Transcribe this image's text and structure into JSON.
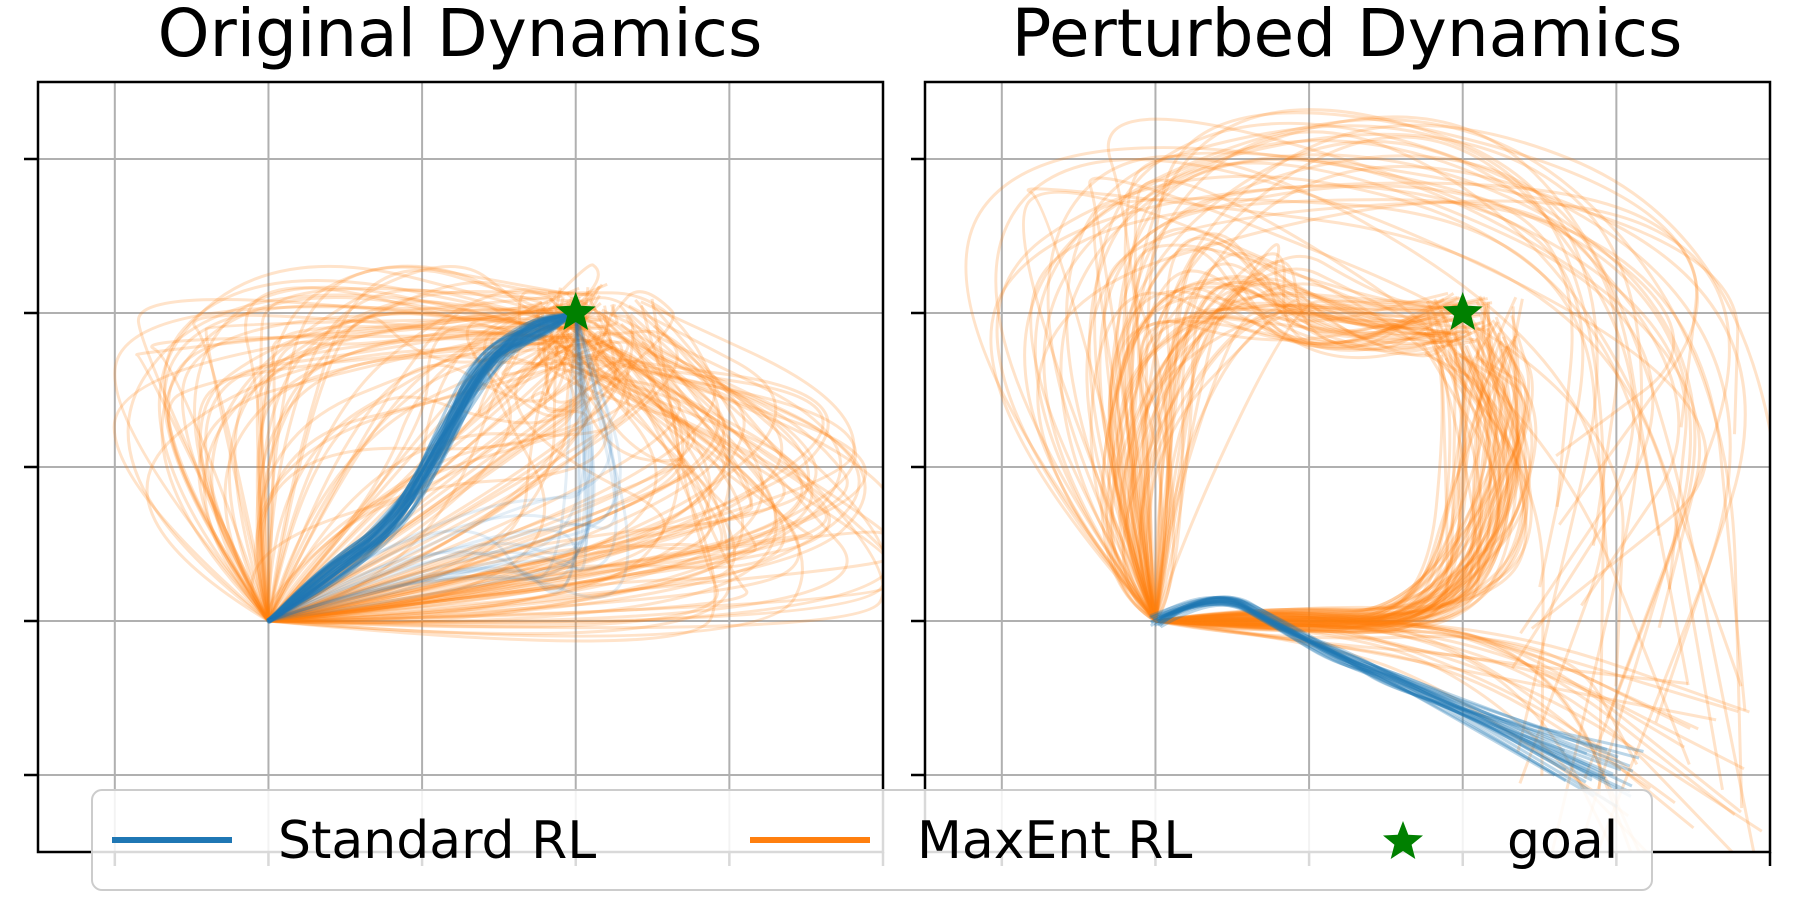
{
  "chart_data": [
    {
      "type": "line",
      "title": "Original Dynamics",
      "xlabel": "",
      "ylabel": "",
      "xlim": [
        -3.5,
        2.0
      ],
      "ylim": [
        -3.5,
        1.5
      ],
      "grid": true,
      "start": [
        -2.0,
        -2.0
      ],
      "goal": [
        0.0,
        0.0
      ],
      "series": [
        {
          "name": "Standard RL",
          "color": "#1f77b4",
          "waypoints": [
            [
              -2.0,
              -2.0
            ],
            [
              -1.6,
              -1.7
            ],
            [
              -1.2,
              -1.4
            ],
            [
              -0.9,
              -0.9
            ],
            [
              -0.6,
              -0.3
            ],
            [
              -0.25,
              -0.1
            ],
            [
              0.0,
              0.0
            ]
          ]
        },
        {
          "name": "MaxEnt RL",
          "color": "#ff7f0e",
          "description_points": []
        }
      ]
    },
    {
      "type": "line",
      "title": "Perturbed Dynamics",
      "xlabel": "",
      "ylabel": "",
      "xlim": [
        -3.5,
        2.0
      ],
      "ylim": [
        -3.5,
        1.5
      ],
      "grid": true,
      "start": [
        -2.0,
        -2.0
      ],
      "goal": [
        0.0,
        0.0
      ],
      "obstacle": {
        "x": [
          -1.6,
          -0.1
        ],
        "y": [
          -1.95,
          -0.2
        ]
      },
      "series": [
        {
          "name": "Standard RL",
          "color": "#1f77b4",
          "waypoints": [
            [
              -2.0,
              -2.0
            ],
            [
              -1.6,
              -1.78
            ],
            [
              -1.2,
              -2.0
            ],
            [
              -0.8,
              -2.2
            ],
            [
              -0.4,
              -2.35
            ]
          ]
        },
        {
          "name": "MaxEnt RL",
          "color": "#ff7f0e"
        }
      ]
    }
  ],
  "legend": {
    "placement": "bottom-center",
    "items": [
      {
        "label": "Standard RL",
        "color": "#1f77b4",
        "marker": "line"
      },
      {
        "label": "MaxEnt RL",
        "color": "#ff7f0e",
        "marker": "line"
      },
      {
        "label": "goal",
        "color": "#008000",
        "marker": "star"
      }
    ]
  }
}
